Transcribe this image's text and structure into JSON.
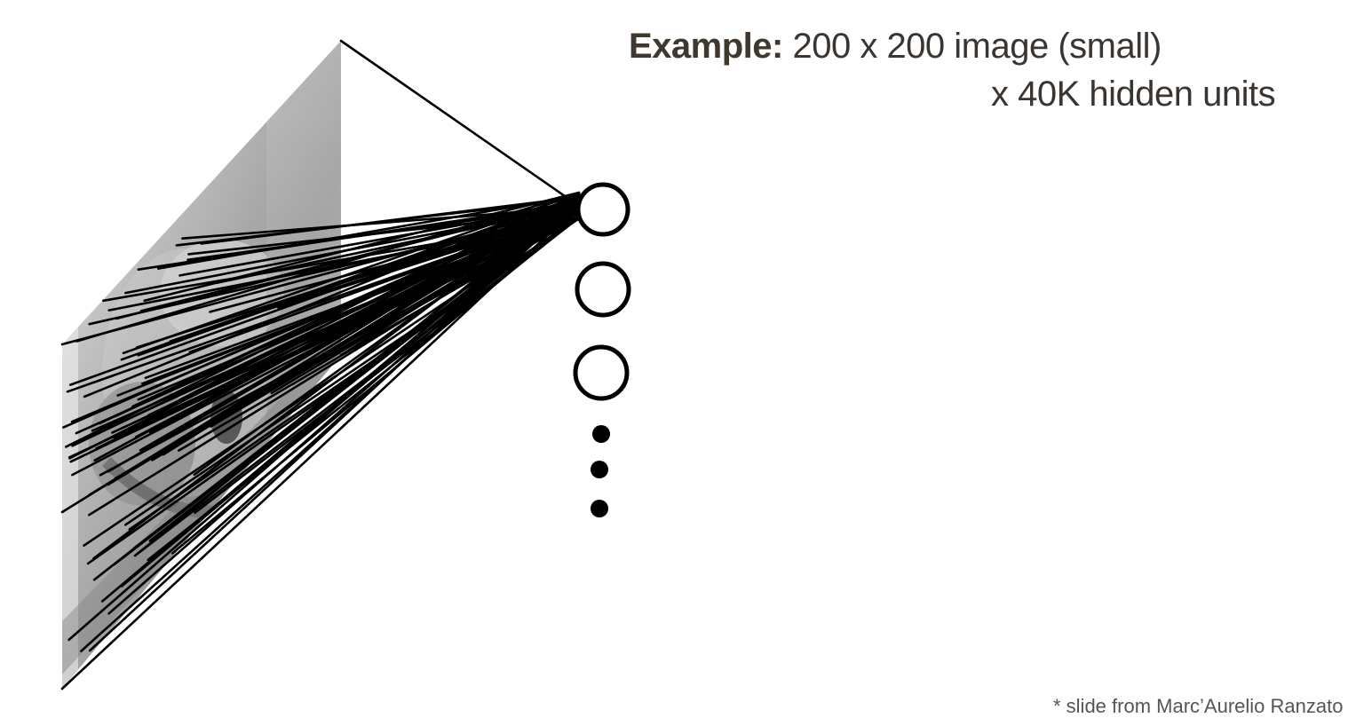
{
  "title": {
    "bold_label": "Example:",
    "line1_text": " 200 x 200 image (small)",
    "line2_text": "x 40K hidden units"
  },
  "footnote": "* slide from Marc’Aurelio Ranzato",
  "diagram": {
    "hidden_units_visible": 3,
    "ellipsis_dots": 3,
    "image_description_icon": "grayscale-portrait-photo"
  }
}
